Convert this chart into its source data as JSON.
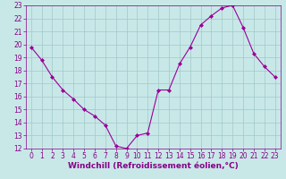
{
  "x": [
    0,
    1,
    2,
    3,
    4,
    5,
    6,
    7,
    8,
    9,
    10,
    11,
    12,
    13,
    14,
    15,
    16,
    17,
    18,
    19,
    20,
    21,
    22,
    23
  ],
  "y": [
    19.8,
    18.8,
    17.5,
    16.5,
    15.8,
    15.0,
    14.5,
    13.8,
    12.2,
    12.0,
    13.0,
    13.2,
    16.5,
    16.5,
    18.5,
    19.8,
    21.5,
    22.2,
    22.8,
    23.0,
    21.3,
    19.3,
    18.3,
    17.5
  ],
  "line_color": "#990099",
  "marker": "D",
  "marker_size": 2,
  "bg_color": "#c8e8e8",
  "grid_color": "#a0c8c8",
  "xlabel": "Windchill (Refroidissement éolien,°C)",
  "xlim": [
    -0.5,
    23.5
  ],
  "ylim": [
    12,
    23
  ],
  "yticks": [
    12,
    13,
    14,
    15,
    16,
    17,
    18,
    19,
    20,
    21,
    22,
    23
  ],
  "xticks": [
    0,
    1,
    2,
    3,
    4,
    5,
    6,
    7,
    8,
    9,
    10,
    11,
    12,
    13,
    14,
    15,
    16,
    17,
    18,
    19,
    20,
    21,
    22,
    23
  ],
  "tick_color": "#880088",
  "label_color": "#880088",
  "label_fontsize": 6.5,
  "tick_fontsize": 5.5
}
